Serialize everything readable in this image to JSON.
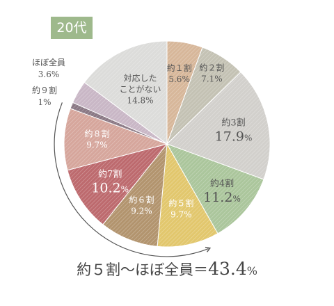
{
  "badge": "20代",
  "footer": {
    "prefix": "約５割〜ほぼ全員＝",
    "value": "43.4",
    "unit": "%"
  },
  "chart_data": {
    "type": "pie",
    "start": "12 o'clock, clockwise",
    "slices": [
      {
        "label": "約１割",
        "value": 5.6,
        "pct": "5.6%",
        "color": "#d7b79a"
      },
      {
        "label": "約２割",
        "value": 7.1,
        "pct": "7.1%",
        "color": "#c4c2b4"
      },
      {
        "label": "約3割",
        "value": 17.9,
        "pct": "17.9",
        "pct_unit": "%",
        "color": "#d2d0cc"
      },
      {
        "label": "約4割",
        "value": 11.2,
        "pct": "11.2",
        "pct_unit": "%",
        "color": "#abc69c"
      },
      {
        "label": "約５割",
        "value": 9.7,
        "pct": "9.7%",
        "color": "#e2c76d"
      },
      {
        "label": "約６割",
        "value": 9.2,
        "pct": "9.2%",
        "color": "#b2946e"
      },
      {
        "label": "約7割",
        "value": 10.2,
        "pct": "10.2",
        "pct_unit": "%",
        "color": "#bd6a6e"
      },
      {
        "label": "約８割",
        "value": 9.7,
        "pct": "9.7%",
        "color": "#d6a69c"
      },
      {
        "label": "約９割",
        "value": 1,
        "pct": "1%",
        "color": "#8a7884"
      },
      {
        "label": "ほぼ全員",
        "value": 3.6,
        "pct": "3.6%",
        "color": "#c9b7c6"
      },
      {
        "label": "対応したことがない",
        "label_lines": [
          "対応した",
          "ことがない"
        ],
        "value": 14.8,
        "pct": "14.8%",
        "color": "#dcdcda"
      }
    ]
  },
  "colors": {
    "badge_bg": "#9eb98c",
    "arrow": "#555555"
  }
}
